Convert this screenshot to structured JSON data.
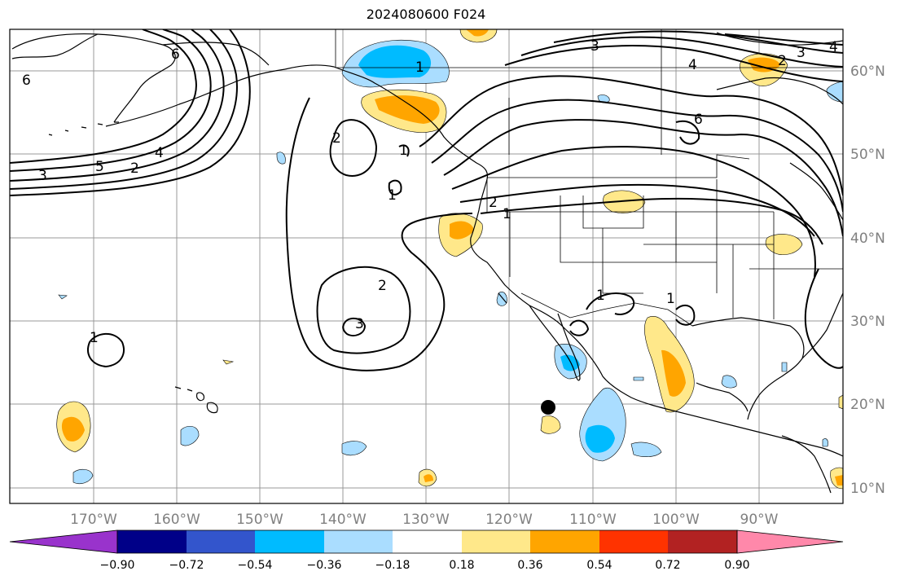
{
  "title": "2024080600 F024",
  "latitude_labels": [
    "60°N",
    "50°N",
    "40°N",
    "30°N",
    "20°N",
    "10°N"
  ],
  "longitude_labels": [
    "170°W",
    "160°W",
    "150°W",
    "140°W",
    "130°W",
    "120°W",
    "110°W",
    "100°W",
    "90°W"
  ],
  "colorbar": {
    "tick_labels": [
      "−0.90",
      "−0.72",
      "−0.54",
      "−0.36",
      "−0.18",
      "0.18",
      "0.36",
      "0.54",
      "0.72",
      "0.90"
    ],
    "colors": [
      "#9933cc",
      "#000088",
      "#3355cc",
      "#00bbff",
      "#aaddff",
      "#ffffff",
      "#ffe88a",
      "#ffa500",
      "#ff3300",
      "#b22222",
      "#ff88aa"
    ]
  },
  "contour_labels": [
    "1",
    "2",
    "3",
    "4",
    "5",
    "6"
  ],
  "colors": {
    "land_outline": "#000000",
    "grid": "#999999",
    "contour": "#000000",
    "label_gray": "#808080"
  }
}
